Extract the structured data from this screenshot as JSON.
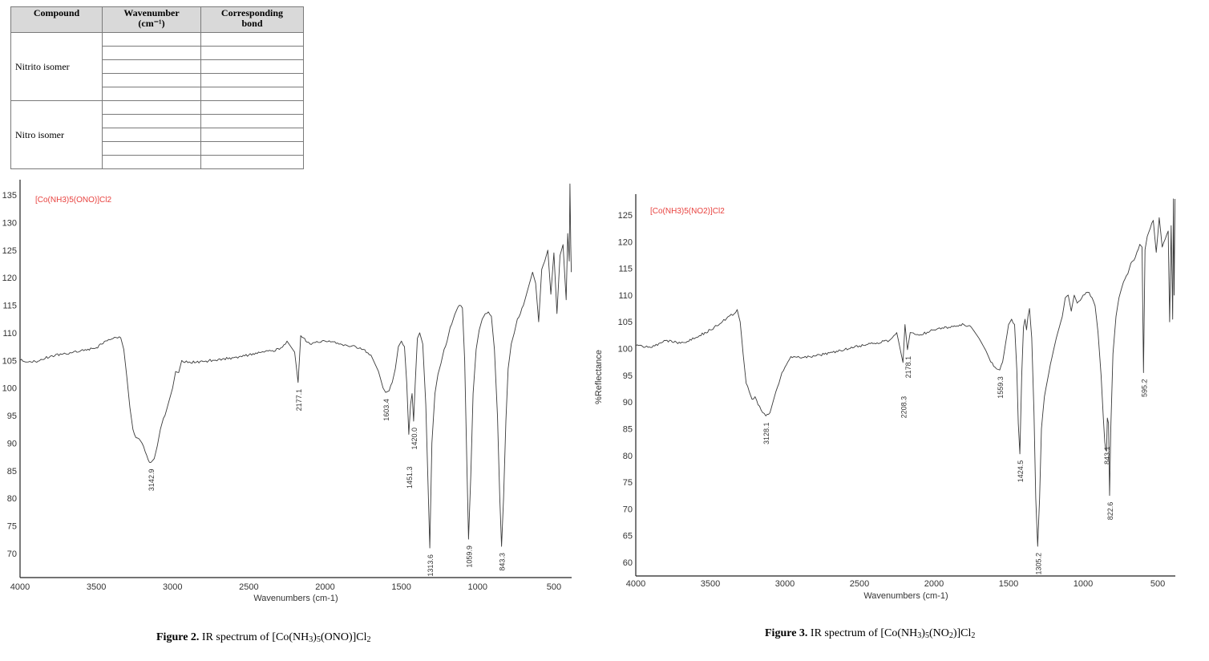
{
  "table": {
    "headers": [
      "Compound",
      "Wavenumber (cm⁻¹)",
      "Corresponding bond"
    ],
    "header_lines": {
      "compound": "Compound",
      "wavenumber_1": "Wavenumber",
      "wavenumber_2": "(cm⁻¹)",
      "bond_1": "Corresponding",
      "bond_2": "bond"
    },
    "rows": [
      {
        "compound": "Nitrito isomer",
        "entries": [
          [
            "",
            ""
          ],
          [
            "",
            ""
          ],
          [
            "",
            ""
          ],
          [
            "",
            ""
          ],
          [
            "",
            ""
          ]
        ]
      },
      {
        "compound": "Nitro isomer",
        "entries": [
          [
            "",
            ""
          ],
          [
            "",
            ""
          ],
          [
            "",
            ""
          ],
          [
            "",
            ""
          ],
          [
            "",
            ""
          ]
        ]
      }
    ]
  },
  "captions": {
    "fig2": {
      "label": "Figure 2.",
      "text_prefix": " IR spectrum of [Co(NH",
      "sub1": "3",
      "mid1": ")",
      "sub2": "5",
      "mid2": "(ONO)]Cl",
      "sub3": "2"
    },
    "fig3": {
      "label": "Figure 3.",
      "text_prefix": " IR spectrum of [Co(NH",
      "sub1": "3",
      "mid1": ")",
      "sub2": "5",
      "mid2": "(NO",
      "sub3": "2",
      "mid3": ")]Cl",
      "sub4": "2"
    }
  },
  "chart_data": [
    {
      "type": "line",
      "title": "[Co(NH3)5(ONO)]Cl2",
      "title_color": "#e8423f",
      "xlabel": "Wavenumbers (cm-1)",
      "ylabel": "",
      "xlim": [
        4000,
        384
      ],
      "ylim": [
        65.6,
        137
      ],
      "x_reversed": true,
      "grid": false,
      "xticks": [
        4000,
        3500,
        3000,
        2500,
        2000,
        1500,
        1000,
        500
      ],
      "yticks": [
        70,
        75,
        80,
        85,
        90,
        95,
        100,
        105,
        110,
        115,
        120,
        125,
        130,
        135
      ],
      "peak_labels": [
        {
          "x": 3142.9,
          "label": "3142.9",
          "y": 86.5
        },
        {
          "x": 2177.1,
          "label": "2177.1",
          "y": 101.0
        },
        {
          "x": 1603.4,
          "label": "1603.4",
          "y": 99.2
        },
        {
          "x": 1451.3,
          "label": "1451.3",
          "y": 91.6
        },
        {
          "x": 1420.0,
          "label": "1420.0",
          "y": 94.0
        },
        {
          "x": 1313.6,
          "label": "1313.6",
          "y": 71.0
        },
        {
          "x": 1059.9,
          "label": "1059.9",
          "y": 72.6
        },
        {
          "x": 843.3,
          "label": "843.3",
          "y": 71.3
        }
      ],
      "x": [
        4000,
        3900,
        3800,
        3700,
        3600,
        3500,
        3420,
        3380,
        3340,
        3320,
        3300,
        3280,
        3260,
        3240,
        3220,
        3200,
        3180,
        3160,
        3142.9,
        3120,
        3100,
        3080,
        3060,
        3040,
        3020,
        3000,
        2980,
        2960,
        2940,
        2900,
        2800,
        2700,
        2600,
        2500,
        2400,
        2300,
        2250,
        2200,
        2177.1,
        2160,
        2100,
        2000,
        1900,
        1850,
        1800,
        1750,
        1700,
        1650,
        1620,
        1603.4,
        1580,
        1560,
        1540,
        1520,
        1500,
        1480,
        1465,
        1451.3,
        1440,
        1430,
        1420.0,
        1410,
        1395,
        1380,
        1360,
        1340,
        1325,
        1313.6,
        1300,
        1280,
        1260,
        1240,
        1220,
        1200,
        1180,
        1160,
        1140,
        1120,
        1100,
        1085,
        1070,
        1059.9,
        1045,
        1030,
        1010,
        990,
        970,
        950,
        930,
        910,
        890,
        870,
        855,
        843.3,
        830,
        815,
        800,
        780,
        760,
        740,
        720,
        700,
        680,
        660,
        640,
        620,
        600,
        580,
        560,
        540,
        520,
        500,
        480,
        460,
        440,
        420,
        410,
        400,
        395,
        390,
        386
      ],
      "values": [
        105.0,
        104.8,
        105.8,
        106.2,
        106.8,
        107.3,
        108.8,
        109.2,
        109.1,
        107.0,
        102.0,
        96.5,
        92.5,
        91.0,
        90.8,
        90.0,
        88.5,
        87.0,
        86.5,
        87.2,
        89.5,
        92.5,
        94.5,
        96.0,
        98.0,
        100.0,
        103.0,
        102.8,
        105.0,
        104.6,
        104.8,
        105.2,
        105.5,
        106.0,
        106.5,
        107.0,
        108.5,
        106.5,
        101.0,
        109.5,
        108.0,
        108.5,
        108.0,
        107.6,
        107.5,
        107.0,
        106.0,
        103.0,
        100.0,
        99.2,
        99.5,
        101.0,
        103.5,
        107.5,
        108.5,
        107.5,
        101.0,
        91.6,
        97.0,
        99.0,
        94.0,
        100.5,
        109.0,
        110.0,
        108.0,
        97.0,
        82.0,
        71.0,
        90.0,
        99.0,
        102.5,
        104.5,
        107.0,
        108.5,
        111.0,
        112.5,
        114.0,
        115.0,
        114.5,
        105.0,
        85.0,
        72.6,
        84.0,
        99.0,
        107.0,
        110.5,
        112.5,
        113.5,
        113.8,
        113.0,
        107.0,
        95.0,
        80.0,
        71.3,
        80.0,
        94.0,
        103.5,
        108.0,
        110.0,
        112.5,
        113.5,
        115.0,
        117.0,
        119.0,
        121.0,
        119.0,
        112.0,
        121.5,
        123.0,
        125.0,
        117.0,
        124.5,
        113.5,
        124.0,
        126.0,
        116.0,
        128.0,
        123.0,
        137.0,
        126.0,
        121.0
      ]
    },
    {
      "type": "line",
      "title": "[Co(NH3)5(NO2)]Cl2",
      "title_color": "#e8423f",
      "xlabel": "Wavenumbers (cm-1)",
      "ylabel": "%Reflectance",
      "xlim": [
        4000,
        382
      ],
      "ylim": [
        57.4,
        128
      ],
      "x_reversed": true,
      "grid": false,
      "xticks": [
        4000,
        3500,
        3000,
        2500,
        2000,
        1500,
        1000,
        500
      ],
      "yticks": [
        60,
        65,
        70,
        75,
        80,
        85,
        90,
        95,
        100,
        105,
        110,
        115,
        120,
        125
      ],
      "peak_labels": [
        {
          "x": 3128.1,
          "label": "3128.1",
          "y": 87.4
        },
        {
          "x": 2208.3,
          "label": "2208.3",
          "y": 97.4
        },
        {
          "x": 2178.1,
          "label": "2178.1",
          "y": 99.8
        },
        {
          "x": 1559.3,
          "label": "1559.3",
          "y": 96.0
        },
        {
          "x": 1424.5,
          "label": "1424.5",
          "y": 80.3
        },
        {
          "x": 1305.2,
          "label": "1305.2",
          "y": 63.0
        },
        {
          "x": 843.1,
          "label": "843.1",
          "y": 80.8
        },
        {
          "x": 822.6,
          "label": "822.6",
          "y": 72.5
        },
        {
          "x": 595.2,
          "label": "595.2",
          "y": 95.5
        }
      ],
      "x": [
        4000,
        3900,
        3800,
        3700,
        3600,
        3500,
        3420,
        3380,
        3340,
        3320,
        3300,
        3280,
        3260,
        3240,
        3220,
        3200,
        3180,
        3160,
        3128.1,
        3100,
        3080,
        3060,
        3040,
        3020,
        3000,
        2980,
        2960,
        2940,
        2900,
        2800,
        2700,
        2600,
        2500,
        2400,
        2300,
        2250,
        2208.3,
        2195,
        2178.1,
        2160,
        2100,
        2000,
        1900,
        1800,
        1750,
        1700,
        1650,
        1620,
        1590,
        1559.3,
        1540,
        1520,
        1500,
        1480,
        1460,
        1445,
        1435,
        1424.5,
        1412,
        1400,
        1390,
        1380,
        1370,
        1360,
        1345,
        1330,
        1318,
        1305.2,
        1292,
        1280,
        1260,
        1240,
        1220,
        1200,
        1180,
        1160,
        1140,
        1120,
        1100,
        1080,
        1060,
        1040,
        1020,
        1000,
        980,
        960,
        940,
        920,
        900,
        880,
        865,
        855,
        848,
        843.1,
        838,
        830,
        822.6,
        815,
        800,
        780,
        760,
        740,
        720,
        700,
        680,
        660,
        640,
        620,
        605,
        595.2,
        585,
        570,
        550,
        530,
        510,
        490,
        470,
        450,
        430,
        420,
        410,
        400,
        395,
        390,
        384
      ],
      "values": [
        100.5,
        100.2,
        101.5,
        101.0,
        102.0,
        103.5,
        105.0,
        106.0,
        106.5,
        107.3,
        105.0,
        99.0,
        93.5,
        92.0,
        90.5,
        91.0,
        89.5,
        88.5,
        87.4,
        88.0,
        90.0,
        92.0,
        93.5,
        95.5,
        96.5,
        97.5,
        98.5,
        98.5,
        98.3,
        98.6,
        99.2,
        99.8,
        100.5,
        101.0,
        101.5,
        103.0,
        97.4,
        104.5,
        99.8,
        103.0,
        102.5,
        103.5,
        104.0,
        104.5,
        104.0,
        102.0,
        99.5,
        97.5,
        96.5,
        96.0,
        97.5,
        101.0,
        104.5,
        105.5,
        104.5,
        96.0,
        86.0,
        80.3,
        95.0,
        104.0,
        105.5,
        103.5,
        106.0,
        107.5,
        102.0,
        88.0,
        72.0,
        63.0,
        72.0,
        85.0,
        91.0,
        94.0,
        97.0,
        99.5,
        102.0,
        104.0,
        106.0,
        109.5,
        110.0,
        107.0,
        110.0,
        108.5,
        109.0,
        110.0,
        110.5,
        110.5,
        109.5,
        108.0,
        103.0,
        95.0,
        87.0,
        82.5,
        81.0,
        80.8,
        87.0,
        86.0,
        72.5,
        85.0,
        99.0,
        106.0,
        109.5,
        111.5,
        113.0,
        114.0,
        116.0,
        116.5,
        118.0,
        119.5,
        119.0,
        95.5,
        118.5,
        121.0,
        122.5,
        124.0,
        118.0,
        124.5,
        119.0,
        120.5,
        122.0,
        105.0,
        123.0,
        105.5,
        128.0,
        110.0,
        128.0
      ]
    }
  ]
}
